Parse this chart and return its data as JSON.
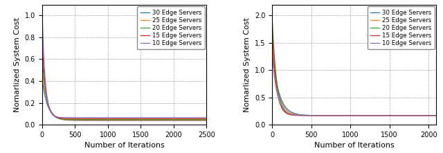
{
  "left_plot": {
    "xlabel": "Number of Iterations",
    "ylabel": "Nomarlized System Cost",
    "xlim": [
      0,
      2500
    ],
    "ylim": [
      0,
      1.1
    ],
    "yticks": [
      0.0,
      0.2,
      0.4,
      0.6,
      0.8,
      1.0
    ],
    "xticks": [
      0,
      500,
      1000,
      1500,
      2000,
      2500
    ],
    "series": [
      {
        "label": "30 Edge Servers",
        "color": "#1f77b4",
        "n_iters": 2500,
        "init": 0.42,
        "decay": 0.012,
        "final": 0.038
      },
      {
        "label": "25 Edge Servers",
        "color": "#ff7f0e",
        "n_iters": 2500,
        "init": 0.52,
        "decay": 0.013,
        "final": 0.042
      },
      {
        "label": "20 Edge Servers",
        "color": "#2ca02c",
        "n_iters": 2500,
        "init": 0.62,
        "decay": 0.015,
        "final": 0.048
      },
      {
        "label": "15 Edge Servers",
        "color": "#d62728",
        "n_iters": 2500,
        "init": 0.78,
        "decay": 0.018,
        "final": 0.055
      },
      {
        "label": "10 Edge Servers",
        "color": "#9467bd",
        "n_iters": 2500,
        "init": 1.05,
        "decay": 0.022,
        "final": 0.065
      }
    ]
  },
  "right_plot": {
    "xlabel": "Number of Iterations",
    "ylabel": "Nomarlized System Cost",
    "xlim": [
      0,
      2100
    ],
    "ylim": [
      0,
      2.2
    ],
    "yticks": [
      0.0,
      0.5,
      1.0,
      1.5,
      2.0
    ],
    "xticks": [
      0,
      500,
      1000,
      1500,
      2000
    ],
    "series": [
      {
        "label": "30 Edge Servers",
        "color": "#1f77b4",
        "n_iters": 2100,
        "init": 1.38,
        "decay": 0.012,
        "final": 0.168
      },
      {
        "label": "25 Edge Servers",
        "color": "#ff7f0e",
        "n_iters": 2100,
        "init": 1.48,
        "decay": 0.014,
        "final": 0.168
      },
      {
        "label": "20 Edge Servers",
        "color": "#2ca02c",
        "n_iters": 2100,
        "init": 2.0,
        "decay": 0.018,
        "final": 0.168
      },
      {
        "label": "15 Edge Servers",
        "color": "#d62728",
        "n_iters": 2100,
        "init": 1.82,
        "decay": 0.02,
        "final": 0.168
      },
      {
        "label": "10 Edge Servers",
        "color": "#9467bd",
        "n_iters": 2100,
        "init": 1.32,
        "decay": 0.016,
        "final": 0.168
      }
    ]
  }
}
